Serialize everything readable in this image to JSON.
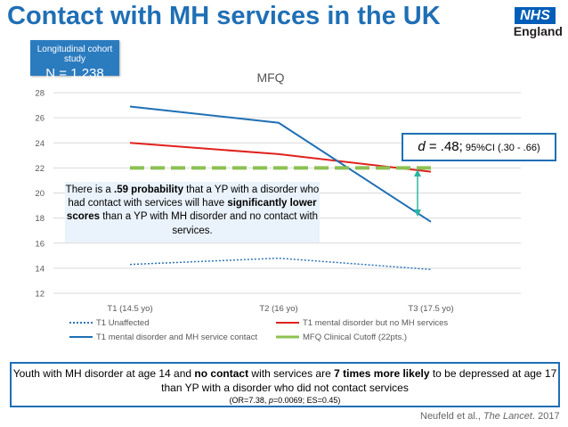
{
  "header": {
    "title": "Contact with MH services in the UK",
    "logo_nhs": "NHS",
    "logo_region": "England"
  },
  "study_box": {
    "label": "Longitudinal cohort study",
    "n": "N = 1,238"
  },
  "effect_box": {
    "d_prefix": "d",
    "d_value": " = .48;",
    "ci": " 95%CI (.30 - .66)"
  },
  "probability_box": {
    "p1": "There is a ",
    "p2": ".59 probability",
    "p3": " that a YP with a disorder who had contact with services will have ",
    "p4": "significantly lower scores",
    "p5": " than a YP with MH disorder and no contact with services."
  },
  "footer": {
    "f1": "Youth with MH disorder at age 14 and ",
    "f2": "no contact",
    "f3": " with services are ",
    "f4": "7 times more likely",
    "f5": " to be depressed at age 17 than YP with a disorder who did not contact services",
    "stats_a": "(OR=7.38, ",
    "stats_p": "p",
    "stats_b": "=0.0069; ES=0.45)"
  },
  "citation": {
    "authors": "Neufeld et al., ",
    "journal": "The Lancet",
    "year": ". 2017"
  },
  "chart_data": {
    "type": "line",
    "title": "MFQ",
    "categories": [
      "T1 (14.5 yo)",
      "T2 (16 yo)",
      "T3 (17.5 yo)"
    ],
    "ylim": [
      12,
      28
    ],
    "yticks": [
      12,
      14,
      16,
      18,
      20,
      22,
      24,
      26,
      28
    ],
    "grid": true,
    "legend_position": "bottom",
    "series": [
      {
        "name": "T1 Unaffected",
        "values": [
          14.3,
          14.8,
          13.9
        ],
        "color": "#2f75b5",
        "style": "dotted"
      },
      {
        "name": "T1 mental disorder but no MH services",
        "values": [
          24.0,
          23.1,
          21.7
        ],
        "color": "#e0221e",
        "style": "solid"
      },
      {
        "name": "T1 mental disorder and MH service contact",
        "values": [
          26.9,
          25.6,
          17.7
        ],
        "color": "#1f6fb5",
        "style": "solid"
      },
      {
        "name": "MFQ Clinical Cutoff (22pts.)",
        "values": [
          22,
          22,
          22
        ],
        "color": "#8cc152",
        "style": "dashed"
      }
    ]
  }
}
